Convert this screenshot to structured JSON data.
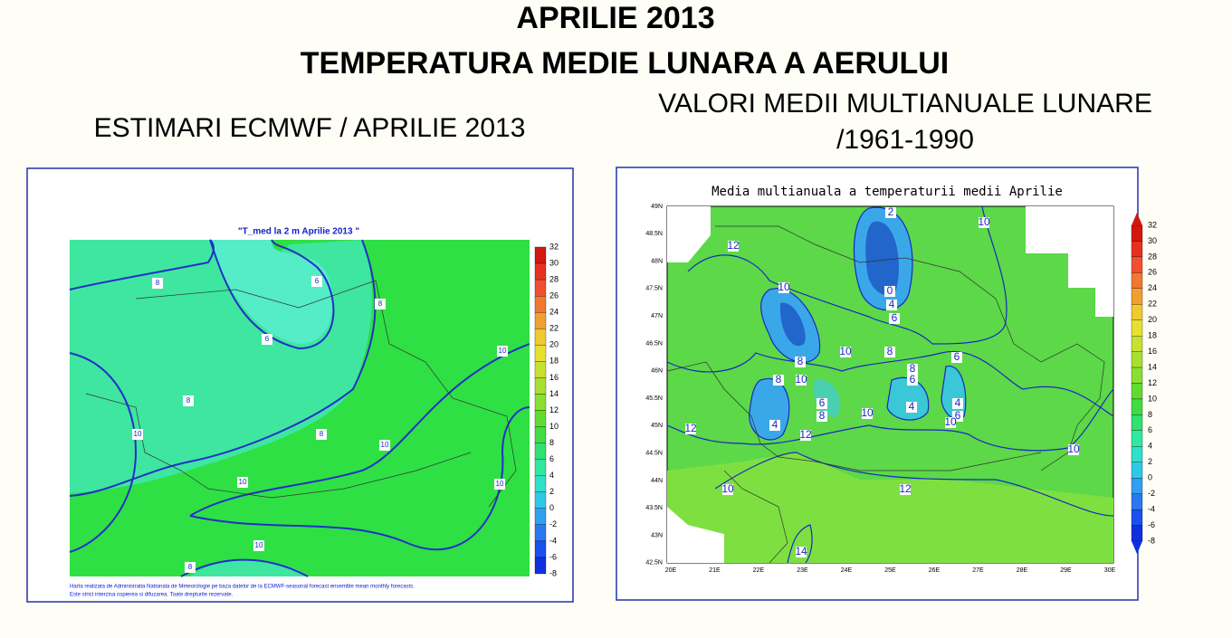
{
  "header": {
    "title_line1": "APRILIE 2013",
    "title_line2": "TEMPERATURA MEDIE LUNARA A AERULUI"
  },
  "left_panel": {
    "heading": "ESTIMARI ECMWF / APRILIE 2013",
    "map_title": "\"T_med la 2 m Aprilie 2013 \"",
    "colorbar": [
      32,
      30,
      28,
      26,
      24,
      22,
      20,
      18,
      16,
      14,
      12,
      10,
      8,
      6,
      4,
      2,
      0,
      -2,
      -4,
      -6,
      -8
    ],
    "contour_labels": [
      "8",
      "6",
      "8",
      "6",
      "8",
      "10",
      "10",
      "8",
      "10",
      "10",
      "10",
      "10",
      "8"
    ],
    "footnote_line1": "Harta realizata de Administratia Nationala de Meteorologie pe baza datelor de la ECMWF-seasonal forecast ensemble mean monthly forecasts.",
    "footnote_line2": "Este strict interzisa copierea si difuzarea. Toate drepturile rezervate."
  },
  "right_panel": {
    "heading_line1": "VALORI MEDII MULTIANUALE LUNARE",
    "heading_line2": "/1961-1990",
    "map_title": "Media multianuala a temperaturii medii Aprilie",
    "colorbar": [
      32,
      30,
      28,
      26,
      24,
      22,
      20,
      18,
      16,
      14,
      12,
      10,
      8,
      6,
      4,
      2,
      0,
      -2,
      -4,
      -6,
      -8
    ],
    "lat_labels": [
      "49N",
      "48.5N",
      "48N",
      "47.5N",
      "47N",
      "46.5N",
      "46N",
      "45.5N",
      "45N",
      "44.5N",
      "44N",
      "43.5N",
      "43N",
      "42.5N"
    ],
    "lon_labels": [
      "20E",
      "21E",
      "22E",
      "23E",
      "24E",
      "25E",
      "26E",
      "27E",
      "28E",
      "29E",
      "30E"
    ],
    "contour_labels": [
      "2",
      "10",
      "12",
      "10",
      "0",
      "4",
      "6",
      "10",
      "8",
      "8",
      "10",
      "8",
      "8",
      "6",
      "6",
      "6",
      "8",
      "4",
      "4",
      "6",
      "10",
      "10",
      "4",
      "12",
      "12",
      "10",
      "10",
      "12",
      "14"
    ]
  }
}
